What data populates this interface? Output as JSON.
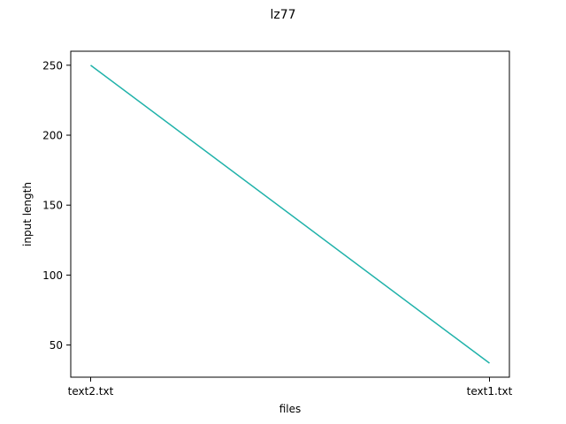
{
  "chart_data": {
    "type": "line",
    "title": "lz77",
    "xlabel": "files",
    "ylabel": "input length",
    "categories": [
      "text2.txt",
      "text1.txt"
    ],
    "series": [
      {
        "values": [
          250,
          37
        ],
        "color": "#20b2aa"
      }
    ],
    "ylim": [
      27,
      260
    ],
    "yticks": [
      50,
      100,
      150,
      200,
      250
    ],
    "grid": false,
    "legend": "none"
  }
}
